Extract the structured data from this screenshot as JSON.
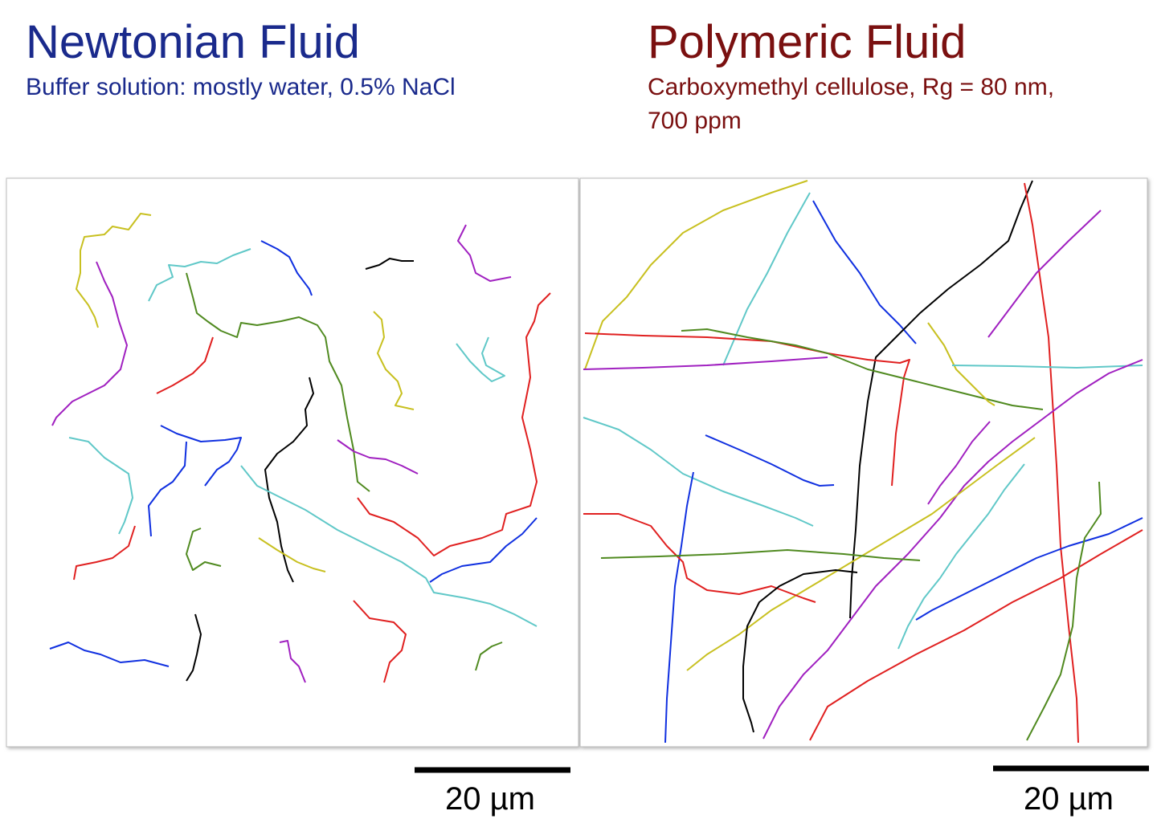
{
  "panels": [
    {
      "title": "Newtonian Fluid",
      "subtitle": [
        "Buffer solution: mostly water, 0.5% NaCl"
      ],
      "scale_bar": "20 µm"
    },
    {
      "title": "Polymeric Fluid",
      "subtitle": [
        "Carboxymethyl cellulose, Rg = 80 nm,",
        " 700 ppm"
      ],
      "scale_bar": "20 µm"
    }
  ]
}
